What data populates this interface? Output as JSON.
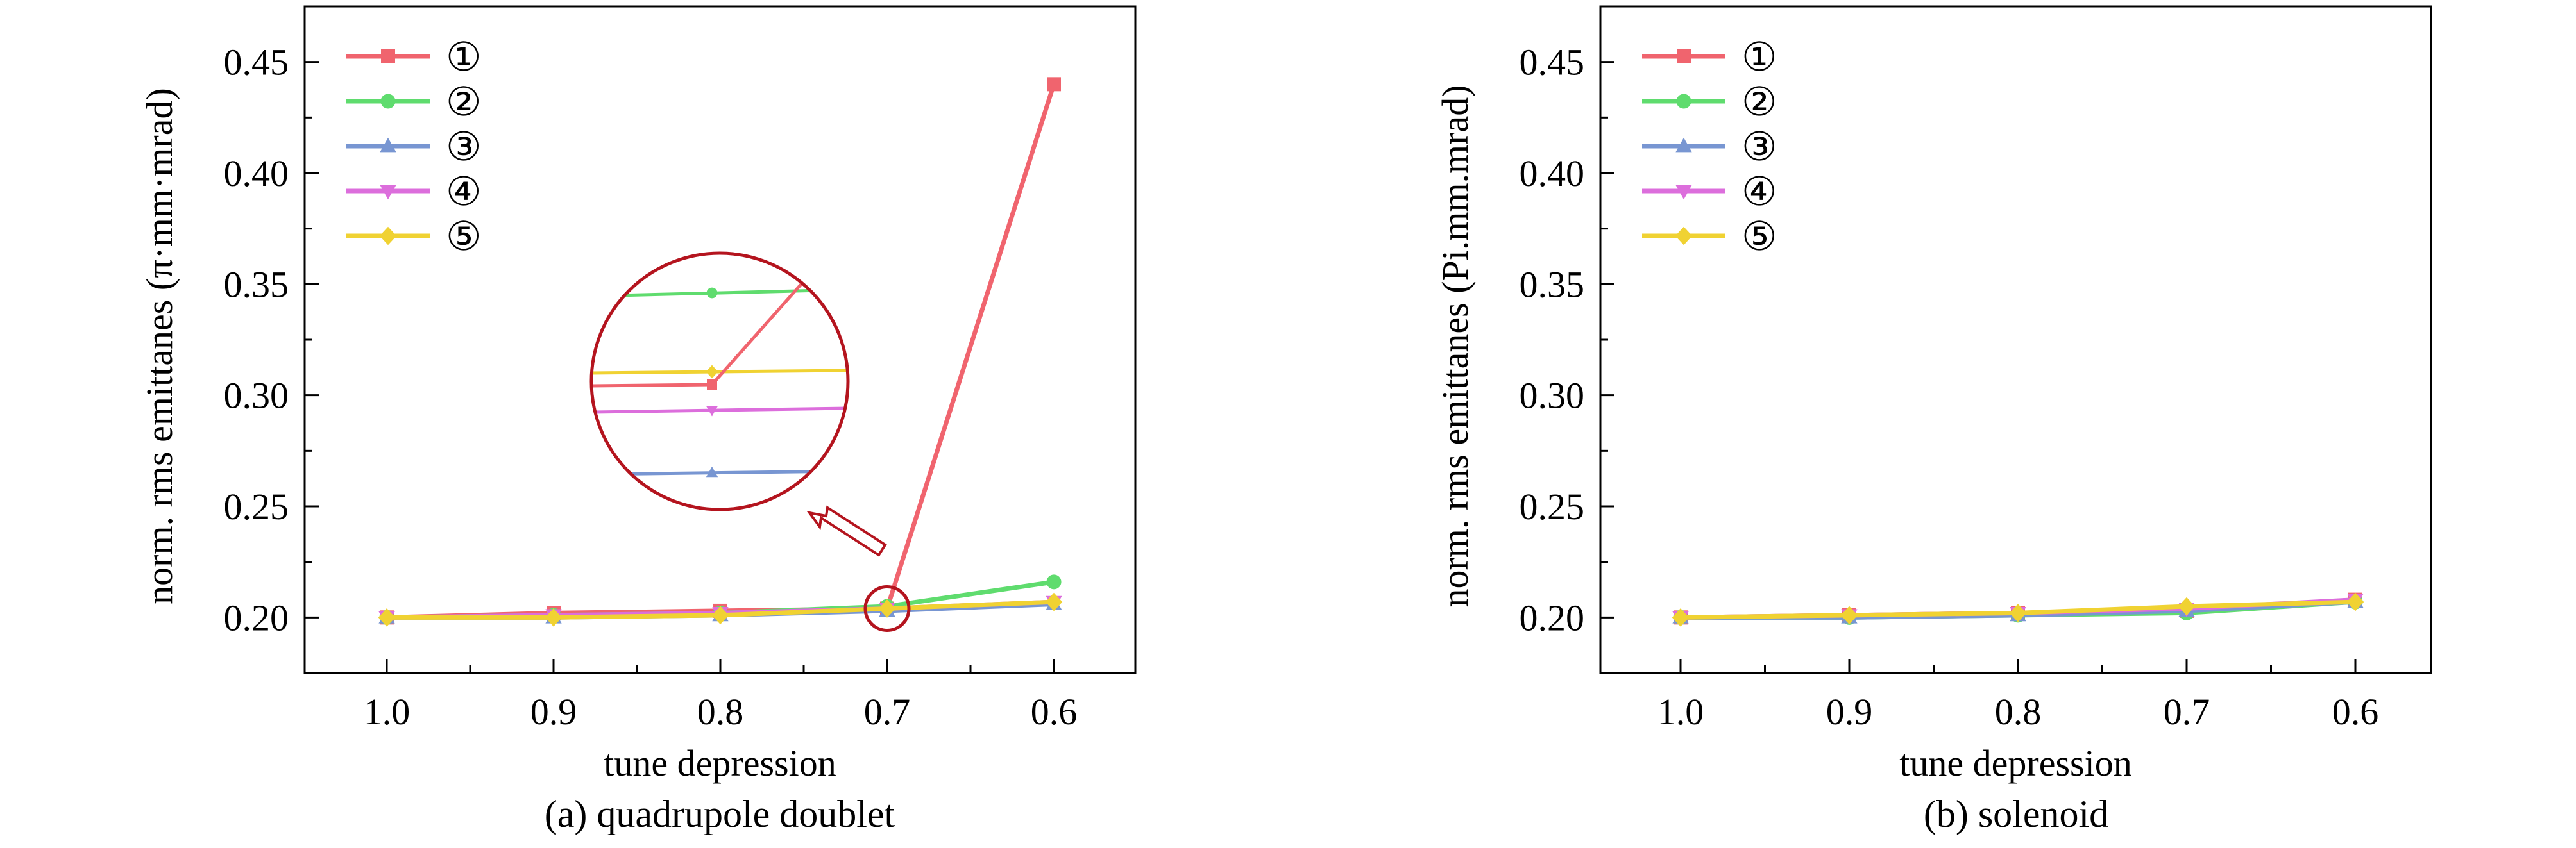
{
  "chart_data": [
    {
      "type": "line",
      "caption": "(a) quadrupole doublet",
      "xlabel": "tune depression",
      "ylabel": "norm. rms emittanes (π·mm·mrad)",
      "x": [
        1.0,
        0.9,
        0.8,
        0.7,
        0.6
      ],
      "x_tick_labels": [
        "1.0",
        "0.9",
        "0.8",
        "0.7",
        "0.6"
      ],
      "x_axis_reversed": true,
      "ylim": [
        0.175,
        0.475
      ],
      "y_ticks": [
        0.2,
        0.25,
        0.3,
        0.35,
        0.4,
        0.45
      ],
      "y_tick_labels": [
        "0.20",
        "0.25",
        "0.30",
        "0.35",
        "0.40",
        "0.45"
      ],
      "legend_position": "top-left",
      "grid": false,
      "series": [
        {
          "name": "①",
          "color": "#f0646e",
          "marker": "square",
          "values": [
            0.2,
            0.202,
            0.203,
            0.204,
            0.44
          ]
        },
        {
          "name": "②",
          "color": "#5fdc6e",
          "marker": "circle",
          "values": [
            0.2,
            0.201,
            0.202,
            0.205,
            0.216
          ]
        },
        {
          "name": "③",
          "color": "#7896d2",
          "marker": "triangle-up",
          "values": [
            0.2,
            0.2,
            0.201,
            0.203,
            0.206
          ]
        },
        {
          "name": "④",
          "color": "#dc6edc",
          "marker": "triangle-down",
          "values": [
            0.2,
            0.201,
            0.202,
            0.204,
            0.207
          ]
        },
        {
          "name": "⑤",
          "color": "#f0d232",
          "marker": "diamond",
          "values": [
            0.2,
            0.2,
            0.201,
            0.204,
            0.207
          ]
        }
      ],
      "annotation": "circular inset magnifying the curves at tune depression 0.7, with hollow arrow pointing to it"
    },
    {
      "type": "line",
      "caption": "(b) solenoid",
      "xlabel": "tune depression",
      "ylabel": "norm. rms emittanes (Pi.mm.mrad)",
      "x": [
        1.0,
        0.9,
        0.8,
        0.7,
        0.6
      ],
      "x_tick_labels": [
        "1.0",
        "0.9",
        "0.8",
        "0.7",
        "0.6"
      ],
      "x_axis_reversed": true,
      "ylim": [
        0.175,
        0.475
      ],
      "y_ticks": [
        0.2,
        0.25,
        0.3,
        0.35,
        0.4,
        0.45
      ],
      "y_tick_labels": [
        "0.20",
        "0.25",
        "0.30",
        "0.35",
        "0.40",
        "0.45"
      ],
      "legend_position": "top-left",
      "grid": false,
      "series": [
        {
          "name": "①",
          "color": "#f0646e",
          "marker": "square",
          "values": [
            0.2,
            0.201,
            0.202,
            0.203,
            0.208
          ]
        },
        {
          "name": "②",
          "color": "#5fdc6e",
          "marker": "circle",
          "values": [
            0.2,
            0.2,
            0.201,
            0.202,
            0.207
          ]
        },
        {
          "name": "③",
          "color": "#7896d2",
          "marker": "triangle-up",
          "values": [
            0.2,
            0.2,
            0.201,
            0.203,
            0.207
          ]
        },
        {
          "name": "④",
          "color": "#dc6edc",
          "marker": "triangle-down",
          "values": [
            0.2,
            0.201,
            0.202,
            0.204,
            0.208
          ]
        },
        {
          "name": "⑤",
          "color": "#f0d232",
          "marker": "diamond",
          "values": [
            0.2,
            0.201,
            0.202,
            0.205,
            0.207
          ]
        }
      ]
    }
  ]
}
